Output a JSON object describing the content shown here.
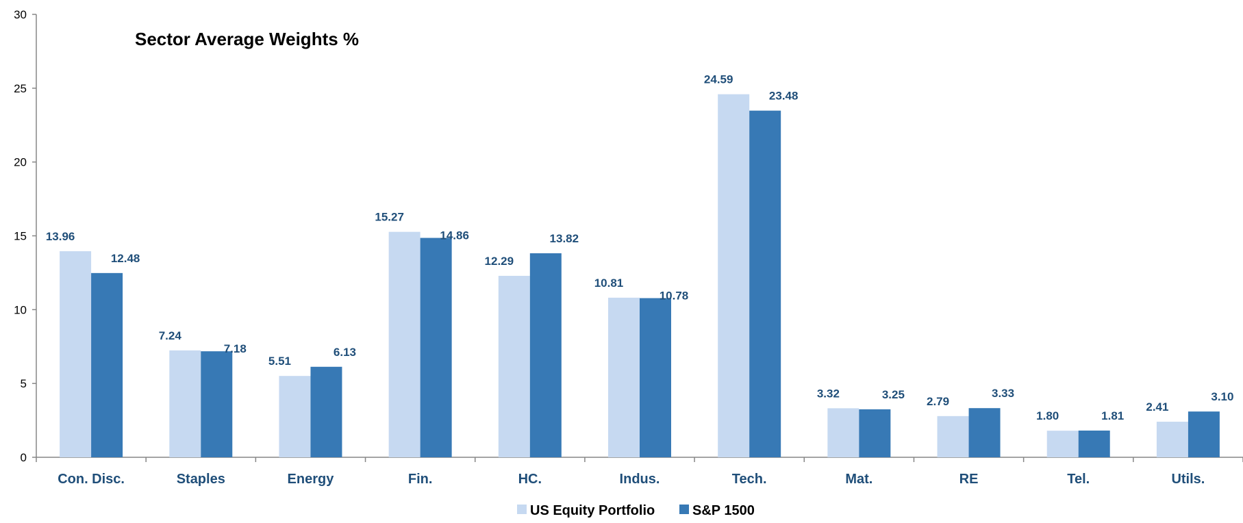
{
  "chart_data": {
    "type": "bar",
    "title": "Sector Average Weights %",
    "xlabel": "",
    "ylabel": "",
    "ylim": [
      0,
      30
    ],
    "yticks": [
      0,
      5,
      10,
      15,
      20,
      25,
      30
    ],
    "grid": false,
    "legend_position": "bottom",
    "categories": [
      "Con. Disc.",
      "Staples",
      "Energy",
      "Fin.",
      "HC.",
      "Indus.",
      "Tech.",
      "Mat.",
      "RE",
      "Tel.",
      "Utils."
    ],
    "series": [
      {
        "name": "US Equity Portfolio",
        "color": "#C6D9F1",
        "values": [
          13.96,
          7.24,
          5.51,
          15.27,
          12.29,
          10.81,
          24.59,
          3.32,
          2.79,
          1.8,
          2.41
        ],
        "labels": [
          "13.96",
          "7.24",
          "5.51",
          "15.27",
          "12.29",
          "10.81",
          "24.59",
          "3.32",
          "2.79",
          "1.80",
          "2.41"
        ]
      },
      {
        "name": "S&P 1500",
        "color": "#3779B5",
        "values": [
          12.48,
          7.18,
          6.13,
          14.86,
          13.82,
          10.78,
          23.48,
          3.25,
          3.33,
          1.81,
          3.1
        ],
        "labels": [
          "12.48",
          "7.18",
          "6.13",
          "14.86",
          "13.82",
          "10.78",
          "23.48",
          "3.25",
          "3.33",
          "1.81",
          "3.10"
        ]
      }
    ],
    "colors": {
      "axis": "#868686",
      "label_text": "#1F4E79"
    }
  }
}
